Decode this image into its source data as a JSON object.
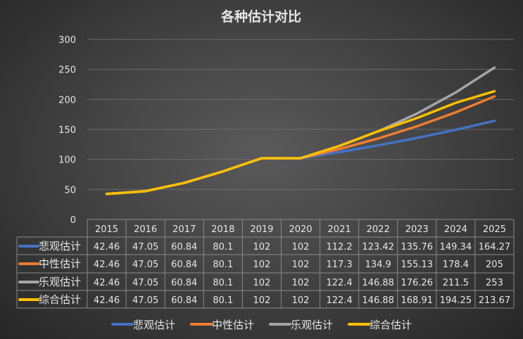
{
  "chart_data": {
    "type": "line",
    "title": "各种估计对比",
    "categories": [
      "2015",
      "2016",
      "2017",
      "2018",
      "2019",
      "2020",
      "2021",
      "2022",
      "2023",
      "2024",
      "2025"
    ],
    "ylim": [
      0,
      300
    ],
    "yticks": [
      0,
      50,
      100,
      150,
      200,
      250,
      300
    ],
    "grid": true,
    "legend_position": "bottom",
    "data_table": true,
    "series": [
      {
        "name": "悲观估计",
        "color": "#4472C4",
        "values": [
          42.46,
          47.05,
          60.84,
          80.1,
          102,
          102,
          112.2,
          123.42,
          135.76,
          149.34,
          164.27
        ]
      },
      {
        "name": "中性估计",
        "color": "#ED7D31",
        "values": [
          42.46,
          47.05,
          60.84,
          80.1,
          102,
          102,
          117.3,
          134.9,
          155.13,
          178.4,
          205
        ]
      },
      {
        "name": "乐观估计",
        "color": "#A5A5A5",
        "values": [
          42.46,
          47.05,
          60.84,
          80.1,
          102,
          102,
          122.4,
          146.88,
          176.26,
          211.5,
          253
        ]
      },
      {
        "name": "综合估计",
        "color": "#FFC000",
        "values": [
          42.46,
          47.05,
          60.84,
          80.1,
          102,
          102,
          122.4,
          146.88,
          168.91,
          194.25,
          213.67
        ]
      }
    ]
  }
}
